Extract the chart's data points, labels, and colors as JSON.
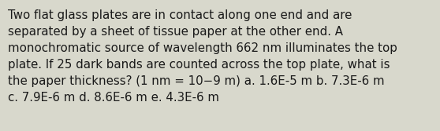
{
  "text": "Two flat glass plates are in contact along one end and are\nseparated by a sheet of tissue paper at the other end. A\nmonochromatic source of wavelength 662 nm illuminates the top\nplate. If 25 dark bands are counted across the top plate, what is\nthe paper thickness? (1 nm = 10−9 m) a. 1.6E-5 m b. 7.3E-6 m\nc. 7.9E-6 m d. 8.6E-6 m e. 4.3E-6 m",
  "background_color": "#d8d8cc",
  "text_color": "#1a1a1a",
  "font_size": 10.8,
  "fig_width": 5.58,
  "fig_height": 1.67,
  "dpi": 100
}
